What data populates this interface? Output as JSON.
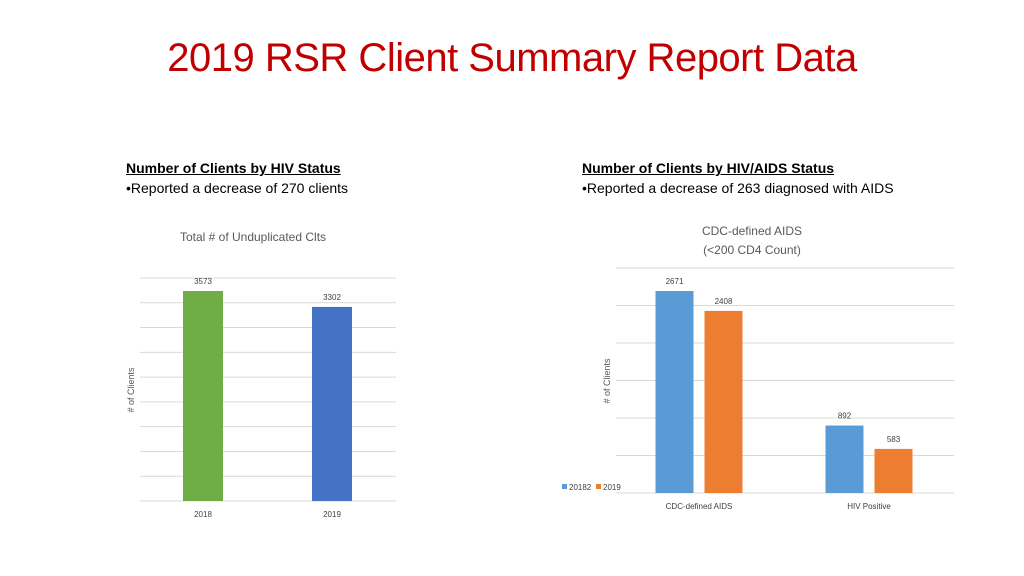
{
  "slide": {
    "title": "2019 RSR Client Summary Report Data"
  },
  "left_section": {
    "heading": "Number of Clients by HIV Status",
    "bullet": "•Reported a decrease of 270 clients"
  },
  "right_section": {
    "heading": "Number of Clients by HIV/AIDS Status",
    "bullet": "•Reported a decrease of 263 diagnosed with AIDS"
  },
  "colors": {
    "green": "#70ad47",
    "blue": "#4472c4",
    "series_blue": "#5b9bd5",
    "series_orange": "#ed7d31",
    "title_red": "#c00000"
  },
  "chart_data": [
    {
      "type": "bar",
      "title": "Total # of Unduplicated Clts",
      "ylabel": "# of Clients",
      "categories": [
        "2018",
        "2019"
      ],
      "values": [
        3573,
        3302
      ],
      "bar_colors": [
        "#70ad47",
        "#4472c4"
      ],
      "data_labels": [
        "3573",
        "3302"
      ],
      "grid": true
    },
    {
      "type": "bar",
      "title_lines": [
        "CDC-defined AIDS",
        "(<200 CD4 Count)"
      ],
      "ylabel": "# of Clients",
      "categories": [
        "CDC-defined AIDS",
        "HIV Positive"
      ],
      "series": [
        {
          "name": "20182",
          "values": [
            2671,
            892
          ],
          "color": "#5b9bd5"
        },
        {
          "name": "2019",
          "values": [
            2408,
            583
          ],
          "color": "#ed7d31"
        }
      ],
      "legend": "bottom-left",
      "grid": true
    }
  ]
}
